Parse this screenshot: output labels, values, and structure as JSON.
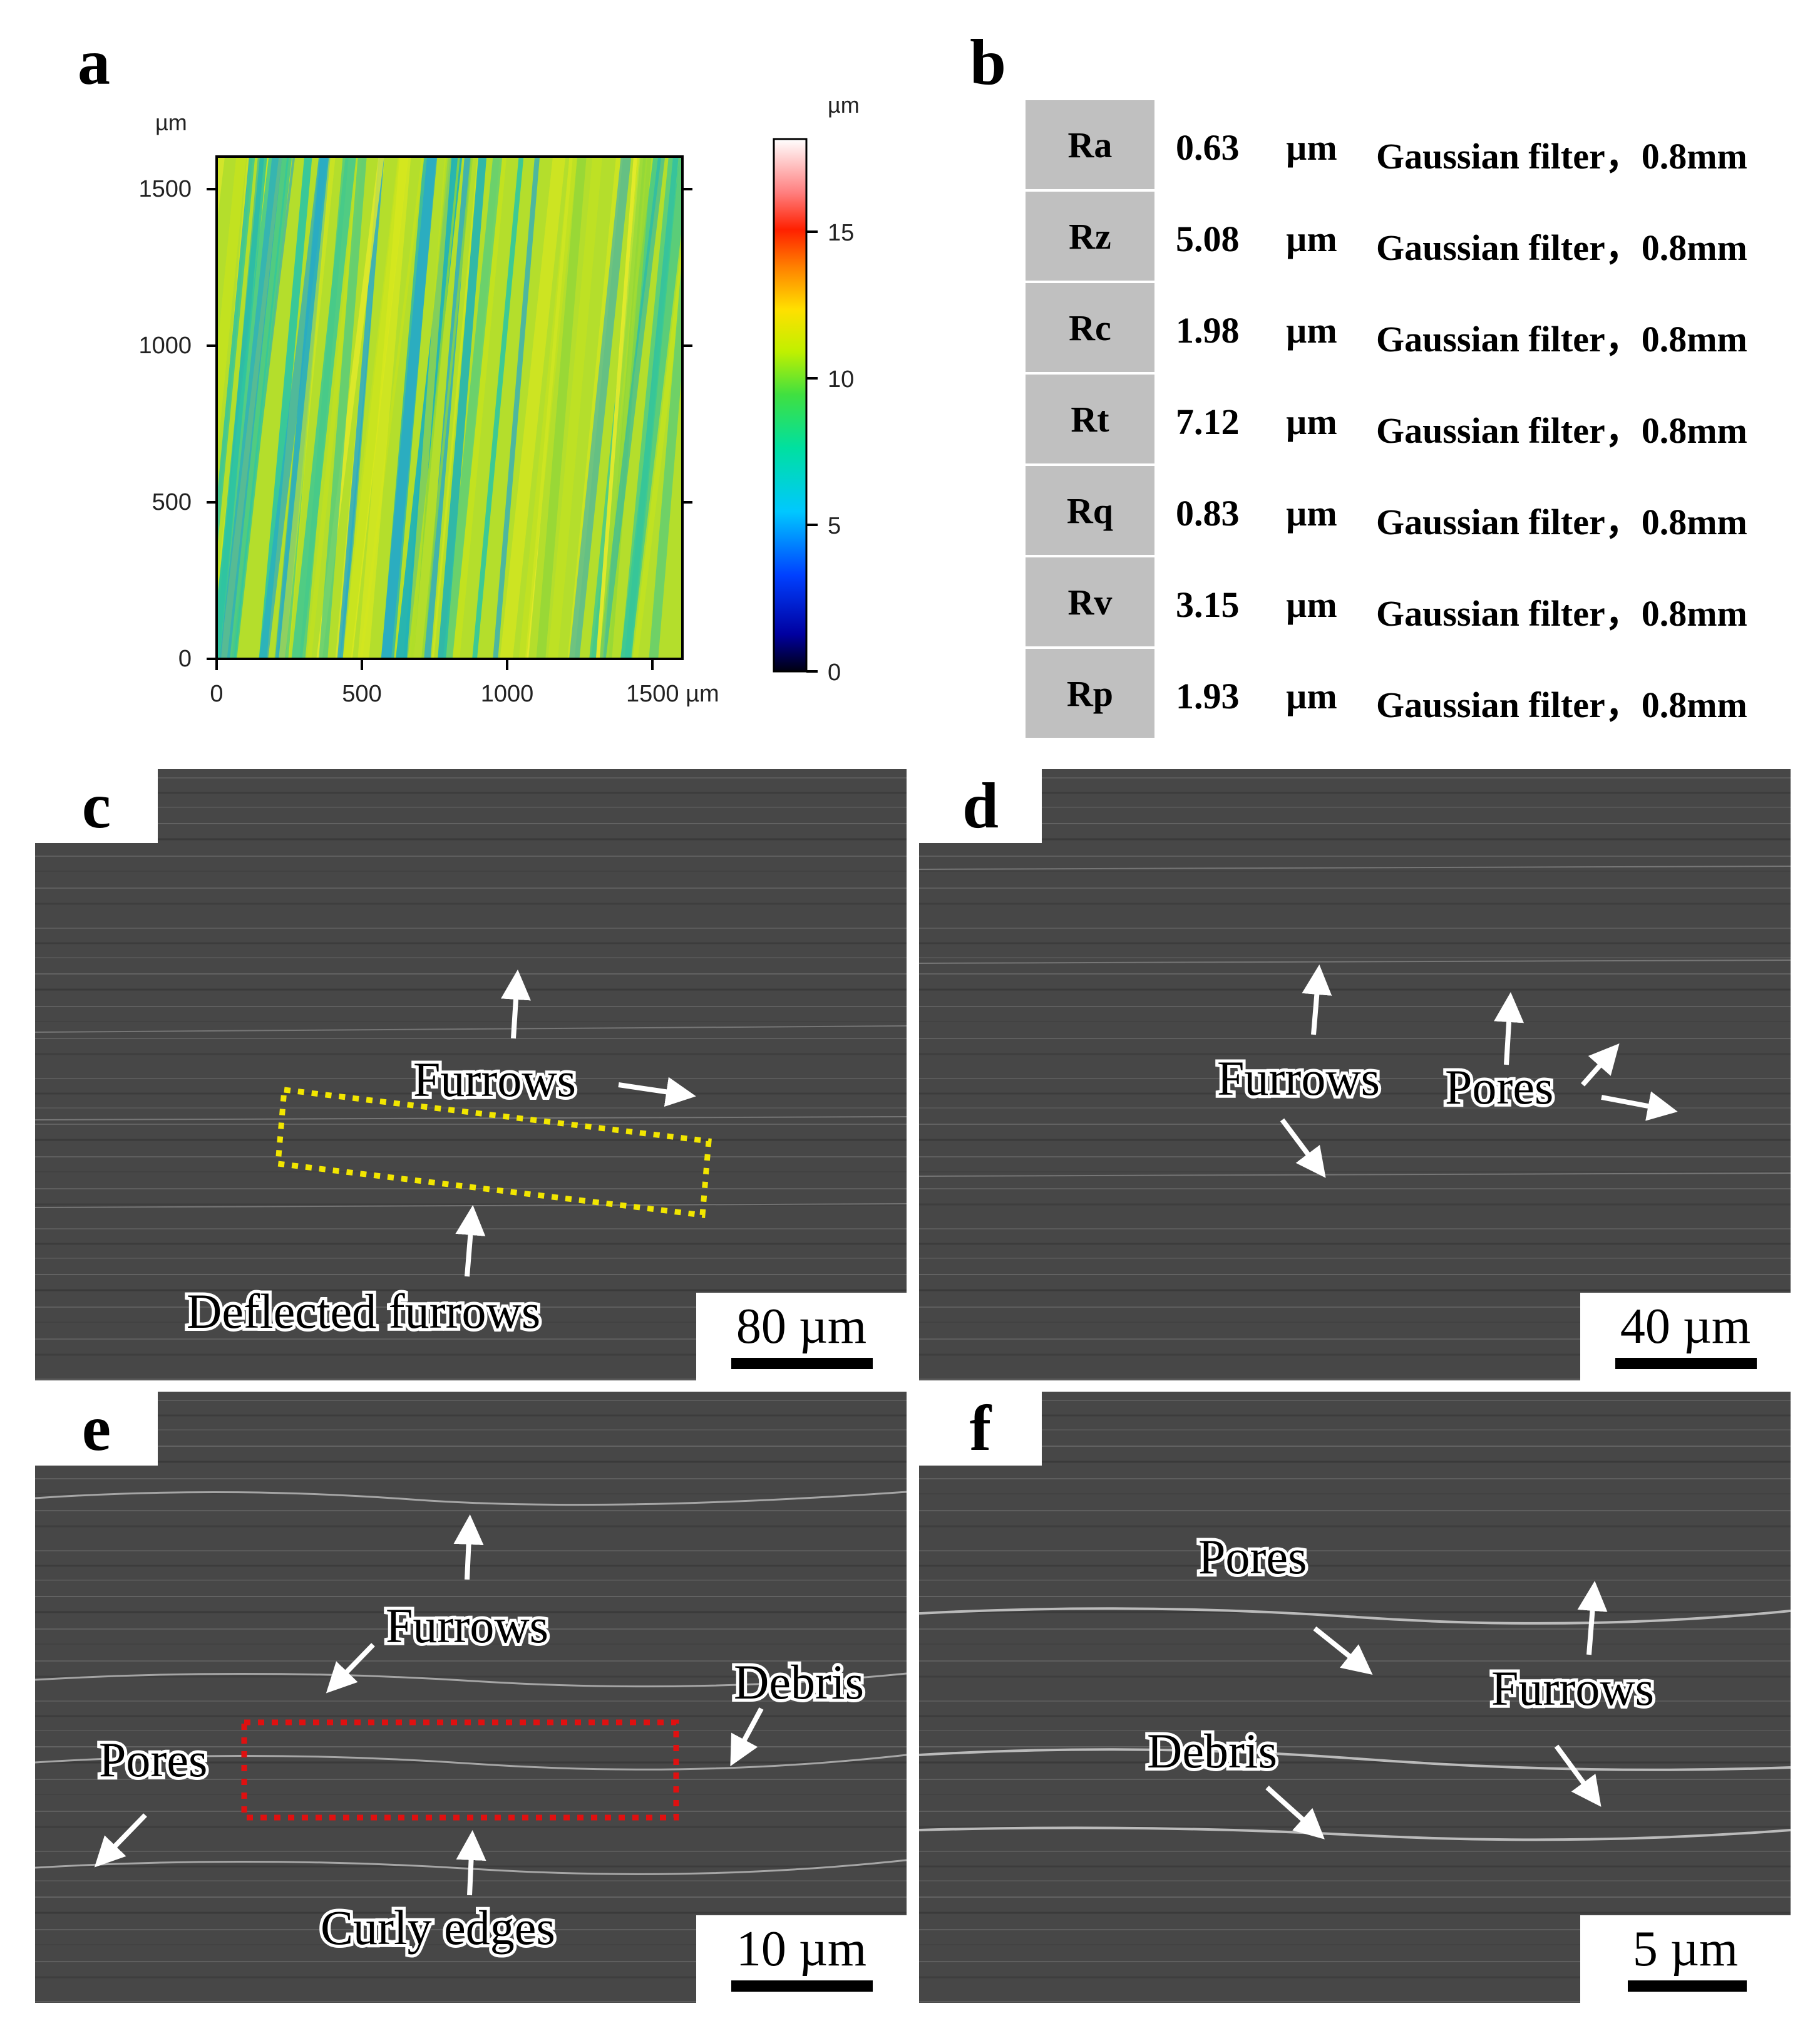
{
  "panels": {
    "a": {
      "letter": "a",
      "x_ticks": [
        "0",
        "500",
        "1000",
        "1500 µm"
      ],
      "y_ticks": [
        "0",
        "500",
        "1000",
        "1500"
      ],
      "y_unit": "µm",
      "colorbar_unit": "µm",
      "colorbar_ticks": [
        "0",
        "5",
        "10",
        "15"
      ]
    },
    "b": {
      "letter": "b",
      "rows": [
        {
          "param": "Ra",
          "value": "0.63",
          "unit": "µm",
          "filter": "Gaussian filter，0.8mm"
        },
        {
          "param": "Rz",
          "value": "5.08",
          "unit": "µm",
          "filter": "Gaussian filter，0.8mm"
        },
        {
          "param": "Rc",
          "value": "1.98",
          "unit": "µm",
          "filter": "Gaussian filter，0.8mm"
        },
        {
          "param": "Rt",
          "value": "7.12",
          "unit": "µm",
          "filter": "Gaussian filter，0.8mm"
        },
        {
          "param": "Rq",
          "value": "0.83",
          "unit": "µm",
          "filter": "Gaussian filter，0.8mm"
        },
        {
          "param": "Rv",
          "value": "3.15",
          "unit": "µm",
          "filter": "Gaussian filter，0.8mm"
        },
        {
          "param": "Rp",
          "value": "1.93",
          "unit": "µm",
          "filter": "Gaussian filter，0.8mm"
        }
      ]
    },
    "c": {
      "letter": "c",
      "furrows": "Furrows",
      "deflected": "Deflected furrows",
      "scale": "80 µm"
    },
    "d": {
      "letter": "d",
      "furrows": "Furrows",
      "pores": "Pores",
      "scale": "40 µm"
    },
    "e": {
      "letter": "e",
      "furrows": "Furrows",
      "debris": "Debris",
      "pores": "Pores",
      "curly": "Curly edges",
      "scale": "10 µm"
    },
    "f": {
      "letter": "f",
      "pores": "Pores",
      "furrows": "Furrows",
      "debris": "Debris",
      "scale": "5 µm"
    }
  },
  "colors": {
    "sem_background": "#4a4a4a",
    "yellow_box": "#f2e600",
    "red_box": "#e01010",
    "table_cell": "#c0c0c0"
  }
}
